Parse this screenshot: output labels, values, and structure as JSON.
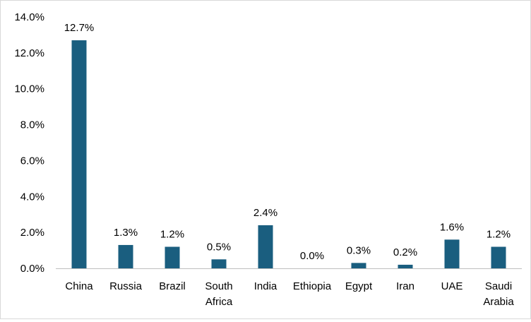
{
  "chart_data": {
    "type": "bar",
    "title": "",
    "xlabel": "",
    "ylabel": "",
    "categories": [
      "China",
      "Russia",
      "Brazil",
      "South Africa",
      "India",
      "Ethiopia",
      "Egypt",
      "Iran",
      "UAE",
      "Saudi Arabia"
    ],
    "category_lines": [
      [
        "China"
      ],
      [
        "Russia"
      ],
      [
        "Brazil"
      ],
      [
        "South",
        "Africa"
      ],
      [
        "India"
      ],
      [
        "Ethiopia"
      ],
      [
        "Egypt"
      ],
      [
        "Iran"
      ],
      [
        "UAE"
      ],
      [
        "Saudi",
        "Arabia"
      ]
    ],
    "values": [
      12.7,
      1.3,
      1.2,
      0.5,
      2.4,
      0.0,
      0.3,
      0.2,
      1.6,
      1.2
    ],
    "data_labels": [
      "12.7%",
      "1.3%",
      "1.2%",
      "0.5%",
      "2.4%",
      "0.0%",
      "0.3%",
      "0.2%",
      "1.6%",
      "1.2%"
    ],
    "ylim": [
      0,
      14
    ],
    "yticks": [
      0,
      2,
      4,
      6,
      8,
      10,
      12,
      14
    ],
    "ytick_labels": [
      "0.0%",
      "2.0%",
      "4.0%",
      "6.0%",
      "8.0%",
      "10.0%",
      "12.0%",
      "14.0%"
    ],
    "bar_color": "#1a5e7f",
    "axis_color": "#bfbfbf",
    "grid": false,
    "legend": "none"
  }
}
